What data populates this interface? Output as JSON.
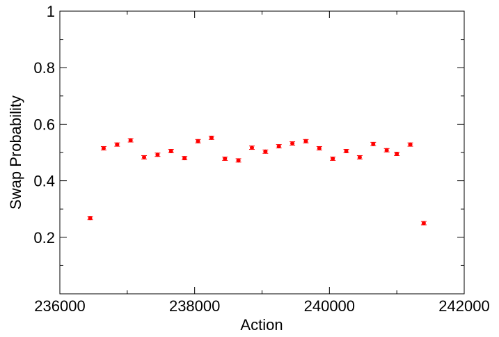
{
  "chart_data": {
    "type": "scatter",
    "xlabel": "Action",
    "ylabel": "Swap Probability",
    "xlim": [
      236000,
      242000
    ],
    "ylim": [
      0,
      1
    ],
    "x_ticks": [
      236000,
      238000,
      240000,
      242000
    ],
    "y_ticks": [
      0.2,
      0.4,
      0.6,
      0.8,
      1
    ],
    "x_tick_labels": [
      "236000",
      "238000",
      "240000",
      "242000"
    ],
    "y_tick_labels": [
      "0.2",
      "0.4",
      "0.6",
      "0.8",
      "1"
    ],
    "grid": false,
    "marker_color": "#ff0000",
    "series": [
      {
        "x": [
          236450,
          236650,
          236850,
          237050,
          237250,
          237450,
          237650,
          237850,
          238050,
          238250,
          238450,
          238650,
          238850,
          239050,
          239250,
          239450,
          239650,
          239850,
          240050,
          240250,
          240450,
          240650,
          240850,
          241000,
          241200,
          241400
        ],
        "y": [
          0.268,
          0.515,
          0.528,
          0.543,
          0.483,
          0.492,
          0.505,
          0.48,
          0.54,
          0.552,
          0.478,
          0.472,
          0.517,
          0.503,
          0.522,
          0.532,
          0.54,
          0.515,
          0.478,
          0.505,
          0.483,
          0.53,
          0.508,
          0.495,
          0.528,
          0.25
        ],
        "err": [
          0.006,
          0.006,
          0.006,
          0.006,
          0.006,
          0.006,
          0.006,
          0.006,
          0.006,
          0.006,
          0.006,
          0.006,
          0.006,
          0.006,
          0.006,
          0.006,
          0.006,
          0.006,
          0.006,
          0.006,
          0.006,
          0.006,
          0.006,
          0.006,
          0.006,
          0.006
        ]
      }
    ]
  }
}
